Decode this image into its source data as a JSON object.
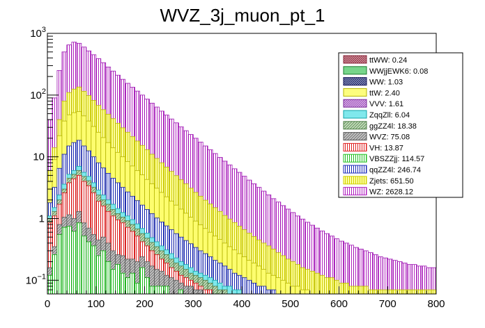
{
  "chart_data": {
    "type": "stacked-histogram",
    "title": "WVZ_3j_muon_pt_1",
    "xlabel": "",
    "ylabel": "",
    "xlim": [
      0,
      800
    ],
    "ylim": [
      0.06,
      1000
    ],
    "yscale": "log",
    "bin_width": 10,
    "x_ticks": [
      "0",
      "100",
      "200",
      "300",
      "400",
      "500",
      "600",
      "700",
      "800"
    ],
    "y_ticks": [
      {
        "value": 0.1,
        "base": "10",
        "exp": "−1"
      },
      {
        "value": 1,
        "base": "1",
        "exp": ""
      },
      {
        "value": 10,
        "base": "10",
        "exp": ""
      },
      {
        "value": 100,
        "base": "10",
        "exp": "2"
      },
      {
        "value": 1000,
        "base": "10",
        "exp": "3"
      }
    ],
    "stack_order": [
      "VBSZZjj",
      "WVZ",
      "VH",
      "ggZZ4l",
      "ZqqZll",
      "qqZZ4l",
      "ttW",
      "Zjets",
      "WZ"
    ],
    "stack_levels": {
      "VBSZZjj": [
        0.12,
        0.26,
        0.55,
        0.72,
        0.75,
        0.62,
        0.85,
        0.52,
        0.42,
        0.36,
        0.25,
        0.3,
        0.2,
        0.15,
        0.18,
        0.13,
        0.11,
        0.13,
        0.09,
        0.16,
        0.11,
        0.08,
        0.08,
        0.08,
        0.08,
        0.06,
        0.06,
        0.07,
        0.06,
        0.06,
        0.06,
        0.06,
        0.06,
        0.06,
        0.06,
        0.06,
        0.06,
        0.06,
        0.06,
        0.06,
        0.06,
        0.06,
        0.06,
        0.06,
        0.06,
        0.06,
        0.06,
        0.06,
        0.06,
        0.06,
        0.06,
        0.06,
        0.06,
        0.06,
        0.06,
        0.06,
        0.06,
        0.06,
        0.06,
        0.06,
        0.06,
        0.06,
        0.06,
        0.06,
        0.06,
        0.06,
        0.06,
        0.06,
        0.06,
        0.06,
        0.06,
        0.06,
        0.06,
        0.06,
        0.06,
        0.06,
        0.06,
        0.06,
        0.06,
        0.06
      ],
      "WVZ": [
        0.16,
        0.35,
        0.8,
        1.05,
        1.15,
        1.0,
        1.3,
        0.85,
        0.7,
        0.55,
        0.45,
        0.5,
        0.4,
        0.3,
        0.26,
        0.25,
        0.22,
        0.22,
        0.2,
        0.24,
        0.2,
        0.17,
        0.15,
        0.14,
        0.12,
        0.11,
        0.1,
        0.09,
        0.08,
        0.08,
        0.07,
        0.07,
        0.06,
        0.06,
        0.06,
        0.06,
        0.06,
        0.06,
        0.06,
        0.06,
        0.06,
        0.06,
        0.06,
        0.06,
        0.06,
        0.06,
        0.06,
        0.06,
        0.06,
        0.06,
        0.06,
        0.06,
        0.06,
        0.06,
        0.06,
        0.06,
        0.06,
        0.06,
        0.06,
        0.06,
        0.06,
        0.06,
        0.06,
        0.06,
        0.06,
        0.06,
        0.06,
        0.06,
        0.06,
        0.06,
        0.06,
        0.06,
        0.06,
        0.06,
        0.06,
        0.06,
        0.06,
        0.06,
        0.06,
        0.06
      ],
      "VH": [
        0.85,
        1.1,
        1.7,
        2.6,
        3.8,
        4.4,
        5.0,
        4.0,
        3.4,
        2.6,
        1.9,
        1.6,
        1.3,
        1.1,
        0.95,
        0.85,
        0.72,
        0.62,
        0.52,
        0.42,
        0.36,
        0.3,
        0.26,
        0.22,
        0.19,
        0.16,
        0.14,
        0.12,
        0.11,
        0.1,
        0.09,
        0.08,
        0.07,
        0.07,
        0.06,
        0.06,
        0.06,
        0.06,
        0.06,
        0.06,
        0.06,
        0.06,
        0.06,
        0.06,
        0.06,
        0.06,
        0.06,
        0.06,
        0.06,
        0.06,
        0.06,
        0.06,
        0.06,
        0.06,
        0.06,
        0.06,
        0.06,
        0.06,
        0.06,
        0.06,
        0.06,
        0.06,
        0.06,
        0.06,
        0.06,
        0.06,
        0.06,
        0.06,
        0.06,
        0.06,
        0.06,
        0.06,
        0.06,
        0.06,
        0.06,
        0.06,
        0.06,
        0.06,
        0.06,
        0.06
      ],
      "ggZZ4l": [
        1.0,
        1.3,
        2.0,
        3.0,
        4.5,
        5.2,
        6.0,
        4.8,
        4.1,
        3.2,
        2.4,
        2.0,
        1.7,
        1.4,
        1.2,
        1.05,
        0.92,
        0.8,
        0.68,
        0.57,
        0.48,
        0.41,
        0.35,
        0.3,
        0.26,
        0.22,
        0.19,
        0.17,
        0.15,
        0.13,
        0.12,
        0.11,
        0.1,
        0.09,
        0.08,
        0.07,
        0.07,
        0.06,
        0.06,
        0.06,
        0.06,
        0.06,
        0.06,
        0.06,
        0.06,
        0.06,
        0.06,
        0.06,
        0.06,
        0.06,
        0.06,
        0.06,
        0.06,
        0.06,
        0.06,
        0.06,
        0.06,
        0.06,
        0.06,
        0.06,
        0.06,
        0.06,
        0.06,
        0.06,
        0.06,
        0.06,
        0.06,
        0.06,
        0.06,
        0.06,
        0.06,
        0.06,
        0.06,
        0.06,
        0.06,
        0.06,
        0.06,
        0.06,
        0.06,
        0.06
      ],
      "ZqqZll": [
        1.1,
        1.5,
        2.4,
        3.6,
        5.2,
        6.0,
        7.0,
        5.6,
        4.8,
        3.8,
        2.9,
        2.4,
        2.0,
        1.7,
        1.45,
        1.25,
        1.1,
        0.96,
        0.82,
        0.69,
        0.58,
        0.49,
        0.42,
        0.36,
        0.31,
        0.27,
        0.23,
        0.2,
        0.18,
        0.16,
        0.14,
        0.13,
        0.12,
        0.11,
        0.1,
        0.09,
        0.08,
        0.08,
        0.07,
        0.07,
        0.06,
        0.06,
        0.06,
        0.06,
        0.06,
        0.06,
        0.06,
        0.06,
        0.06,
        0.06,
        0.06,
        0.06,
        0.06,
        0.06,
        0.06,
        0.06,
        0.06,
        0.06,
        0.06,
        0.06,
        0.06,
        0.06,
        0.06,
        0.06,
        0.06,
        0.06,
        0.06,
        0.06,
        0.06,
        0.06,
        0.06,
        0.06,
        0.06,
        0.06,
        0.06,
        0.06,
        0.06,
        0.06,
        0.06,
        0.06
      ],
      "qqZZ4l": [
        1.8,
        3.2,
        6.5,
        11.0,
        15.0,
        17.0,
        18.5,
        15.0,
        12.5,
        10.0,
        8.0,
        6.6,
        5.4,
        4.5,
        3.8,
        3.2,
        2.7,
        2.3,
        1.95,
        1.65,
        1.4,
        1.2,
        1.02,
        0.88,
        0.76,
        0.66,
        0.57,
        0.5,
        0.44,
        0.39,
        0.34,
        0.3,
        0.27,
        0.24,
        0.21,
        0.19,
        0.17,
        0.15,
        0.13,
        0.12,
        0.11,
        0.1,
        0.09,
        0.08,
        0.08,
        0.07,
        0.07,
        0.06,
        0.06,
        0.06,
        0.06,
        0.06,
        0.06,
        0.06,
        0.06,
        0.06,
        0.06,
        0.06,
        0.06,
        0.06,
        0.06,
        0.06,
        0.06,
        0.06,
        0.06,
        0.06,
        0.06,
        0.06,
        0.06,
        0.06,
        0.06,
        0.06,
        0.06,
        0.06,
        0.06,
        0.06,
        0.06,
        0.06,
        0.06,
        0.06
      ],
      "ttW": [
        4.0,
        9.0,
        22.0,
        38.0,
        48.0,
        52.0,
        54.0,
        46.0,
        38.0,
        31.0,
        25.0,
        20.5,
        17.0,
        14.0,
        11.8,
        10.0,
        8.4,
        7.1,
        6.0,
        5.1,
        4.3,
        3.65,
        3.1,
        2.65,
        2.25,
        1.92,
        1.65,
        1.42,
        1.22,
        1.05,
        0.91,
        0.79,
        0.69,
        0.6,
        0.52,
        0.46,
        0.4,
        0.35,
        0.31,
        0.27,
        0.24,
        0.21,
        0.19,
        0.17,
        0.15,
        0.13,
        0.12,
        0.11,
        0.1,
        0.09,
        0.08,
        0.08,
        0.07,
        0.07,
        0.06,
        0.06,
        0.06,
        0.06,
        0.06,
        0.06,
        0.06,
        0.06,
        0.06,
        0.06,
        0.06,
        0.06,
        0.06,
        0.06,
        0.06,
        0.06,
        0.06,
        0.06,
        0.06,
        0.06,
        0.06,
        0.06,
        0.06,
        0.06,
        0.06,
        0.06
      ],
      "Zjets": [
        6.0,
        14.0,
        40.0,
        80.0,
        110,
        125,
        135,
        115,
        98.0,
        82.0,
        68.0,
        58.0,
        49.0,
        41.5,
        35.0,
        29.5,
        25.0,
        21.2,
        18.0,
        15.3,
        13.0,
        11.0,
        9.4,
        8.0,
        6.8,
        5.8,
        4.95,
        4.25,
        3.65,
        3.1,
        2.65,
        2.3,
        1.98,
        1.72,
        1.5,
        1.3,
        1.12,
        0.98,
        0.86,
        0.75,
        0.66,
        0.58,
        0.51,
        0.45,
        0.4,
        0.36,
        0.32,
        0.28,
        0.25,
        0.22,
        0.2,
        0.18,
        0.16,
        0.15,
        0.14,
        0.13,
        0.12,
        0.11,
        0.11,
        0.1,
        0.09,
        0.09,
        0.08,
        0.08,
        0.08,
        0.08,
        0.07,
        0.07,
        0.07,
        0.07,
        0.07,
        0.07,
        0.07,
        0.07,
        0.07,
        0.07,
        0.07,
        0.07,
        0.07,
        0.07
      ],
      "WZ": [
        40.0,
        90.0,
        250,
        500,
        650,
        720,
        690,
        600,
        520,
        450,
        390,
        335,
        285,
        245,
        210,
        180,
        155,
        134,
        116,
        100,
        86.0,
        74.0,
        64.0,
        55.0,
        47.5,
        41.0,
        35.5,
        30.5,
        26.5,
        23.0,
        20.0,
        17.3,
        15.0,
        13.0,
        11.3,
        9.8,
        8.5,
        7.4,
        6.4,
        5.6,
        4.85,
        4.2,
        3.65,
        3.2,
        2.78,
        2.42,
        2.1,
        1.85,
        1.62,
        1.42,
        1.25,
        1.1,
        0.98,
        0.87,
        0.78,
        0.7,
        0.63,
        0.57,
        0.52,
        0.47,
        0.43,
        0.4,
        0.37,
        0.34,
        0.32,
        0.3,
        0.28,
        0.26,
        0.24,
        0.23,
        0.22,
        0.21,
        0.2,
        0.19,
        0.18,
        0.18,
        0.17,
        0.17,
        0.16,
        0.16
      ]
    },
    "legend": [
      {
        "name": "ttWW",
        "label": "ttWW: 0.24",
        "fill": "#d89ca8",
        "edge": "#8b2a3c",
        "pattern": "crosshatch-dense"
      },
      {
        "name": "WWjjEWK6",
        "label": "WWjjEWK6: 0.08",
        "fill": "#77d58a",
        "edge": "#1a7a2c",
        "pattern": "solid"
      },
      {
        "name": "WW",
        "label": "WW: 1.03",
        "fill": "#9aa6cc",
        "edge": "#111155",
        "pattern": "crosshatch-dense"
      },
      {
        "name": "ttW",
        "label": "ttW: 2.40",
        "fill": "#fdfd7e",
        "edge": "#b4b400",
        "pattern": "solid"
      },
      {
        "name": "VVV",
        "label": "VVV: 1.61",
        "fill": "#d8a4e8",
        "edge": "#7a2a9a",
        "pattern": "diag-dense"
      },
      {
        "name": "ZqqZll",
        "label": "ZqqZll: 6.04",
        "fill": "#80e8ec",
        "edge": "#10a4a8",
        "pattern": "solid"
      },
      {
        "name": "ggZZ4l",
        "label": "ggZZ4l: 18.38",
        "fill": "#b8d8b0",
        "edge": "#4c7c44",
        "pattern": "diag"
      },
      {
        "name": "WVZ",
        "label": "WVZ: 75.08",
        "fill": "#bdbdbd",
        "edge": "#555555",
        "pattern": "diag"
      },
      {
        "name": "VH",
        "label": "VH: 13.87",
        "fill": "#ffffff",
        "edge": "#e02020",
        "pattern": "vert-red"
      },
      {
        "name": "VBSZZjj",
        "label": "VBSZZjj: 114.57",
        "fill": "#ffffff",
        "edge": "#20c020",
        "pattern": "vert-green"
      },
      {
        "name": "qqZZ4l",
        "label": "qqZZ4l: 246.74",
        "fill": "#ffffff",
        "edge": "#1a2ab8",
        "pattern": "vert-blue"
      },
      {
        "name": "Zjets",
        "label": "Zjets: 651.50",
        "fill": "#ffffa0",
        "edge": "#d0d000",
        "pattern": "vert-yellow"
      },
      {
        "name": "WZ",
        "label": "WZ: 2628.12",
        "fill": "#ffffff",
        "edge": "#b020c0",
        "pattern": "vert-purple"
      }
    ]
  }
}
